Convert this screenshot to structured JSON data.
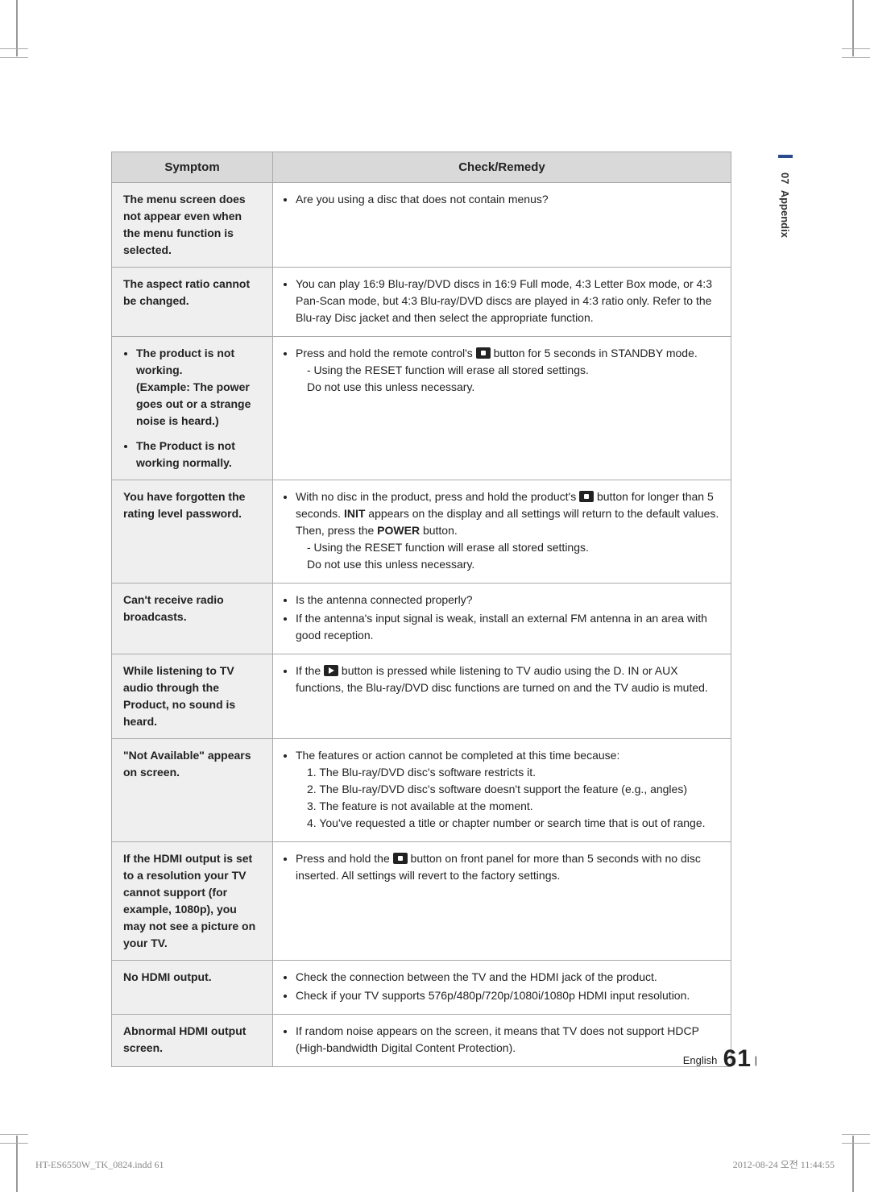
{
  "table": {
    "header": {
      "symptom": "Symptom",
      "remedy": "Check/Remedy"
    },
    "rows": [
      {
        "symptom": "The menu screen does not appear even when the menu function is selected.",
        "remedy_items": [
          "Are you using a disc that does not contain menus?"
        ]
      },
      {
        "symptom": "The aspect ratio cannot be changed.",
        "remedy_items": [
          "You can play 16:9 Blu-ray/DVD discs in 16:9 Full mode, 4:3 Letter Box mode, or 4:3 Pan-Scan mode, but 4:3 Blu-ray/DVD discs are played in 4:3 ratio only. Refer to the Blu-ray Disc jacket and then select the appropriate function."
        ]
      },
      {
        "symptom_list": [
          "The product is not working.\n(Example: The power goes out or a strange noise is heard.)",
          "The Product is not working normally."
        ],
        "remedy_pre": "Press and hold the remote control's ",
        "remedy_post": " button for 5 seconds in STANDBY mode.",
        "remedy_sub": [
          "- Using the RESET function will erase all stored settings.",
          "  Do not use this unless necessary."
        ]
      },
      {
        "symptom": "You have forgotten the rating level password.",
        "remedy_pre": "With no disc in the product, press and hold the product's ",
        "remedy_post": " button for longer than 5 seconds. ",
        "remedy_mid1": "INIT",
        "remedy_mid2": " appears on the display and all settings will return to the default values. Then, press the ",
        "remedy_mid3": "POWER",
        "remedy_mid4": " button.",
        "remedy_sub": [
          "- Using the RESET function will erase all stored settings.",
          "  Do not use this unless necessary."
        ]
      },
      {
        "symptom": "Can't receive radio broadcasts.",
        "remedy_items": [
          "Is the antenna connected properly?",
          "If the antenna's input signal is weak, install an external FM antenna in an area with good reception."
        ]
      },
      {
        "symptom": "While listening to TV audio through the Product, no sound is heard.",
        "remedy_pre": "If the ",
        "remedy_post": " button is pressed while listening to TV audio using the D. IN or AUX functions, the Blu-ray/DVD disc functions are turned on and the TV audio is muted."
      },
      {
        "symptom": "\"Not Available\" appears on screen.",
        "remedy_items": [
          "The features or action cannot be completed at this time because:"
        ],
        "remedy_sub": [
          "1. The Blu-ray/DVD disc's software restricts it.",
          "2. The Blu-ray/DVD disc's software doesn't support the feature (e.g., angles)",
          "3. The feature is not available at the moment.",
          "4. You've requested a title or chapter number or search time that is out of range."
        ]
      },
      {
        "symptom": "If the HDMI output is set to a resolution your TV cannot support (for example, 1080p), you may not see a picture on your TV.",
        "remedy_pre": "Press and hold the ",
        "remedy_post": " button on front panel for more than 5 seconds with no disc inserted. All settings will revert to the factory settings."
      },
      {
        "symptom": "No HDMI output.",
        "remedy_items": [
          "Check the connection between the TV and the HDMI jack of the product.",
          "Check if your TV supports 576p/480p/720p/1080i/1080p HDMI input resolution."
        ]
      },
      {
        "symptom": "Abnormal HDMI output screen.",
        "remedy_items": [
          "If random noise appears on the screen, it means that TV does not support HDCP (High-bandwidth Digital Content Protection)."
        ]
      }
    ]
  },
  "side": {
    "section_num": "07",
    "section_name": "Appendix"
  },
  "footer": {
    "lang": "English",
    "page": "61"
  },
  "print": {
    "left": "HT-ES6550W_TK_0824.indd   61",
    "right": "2012-08-24   오전 11:44:55"
  }
}
